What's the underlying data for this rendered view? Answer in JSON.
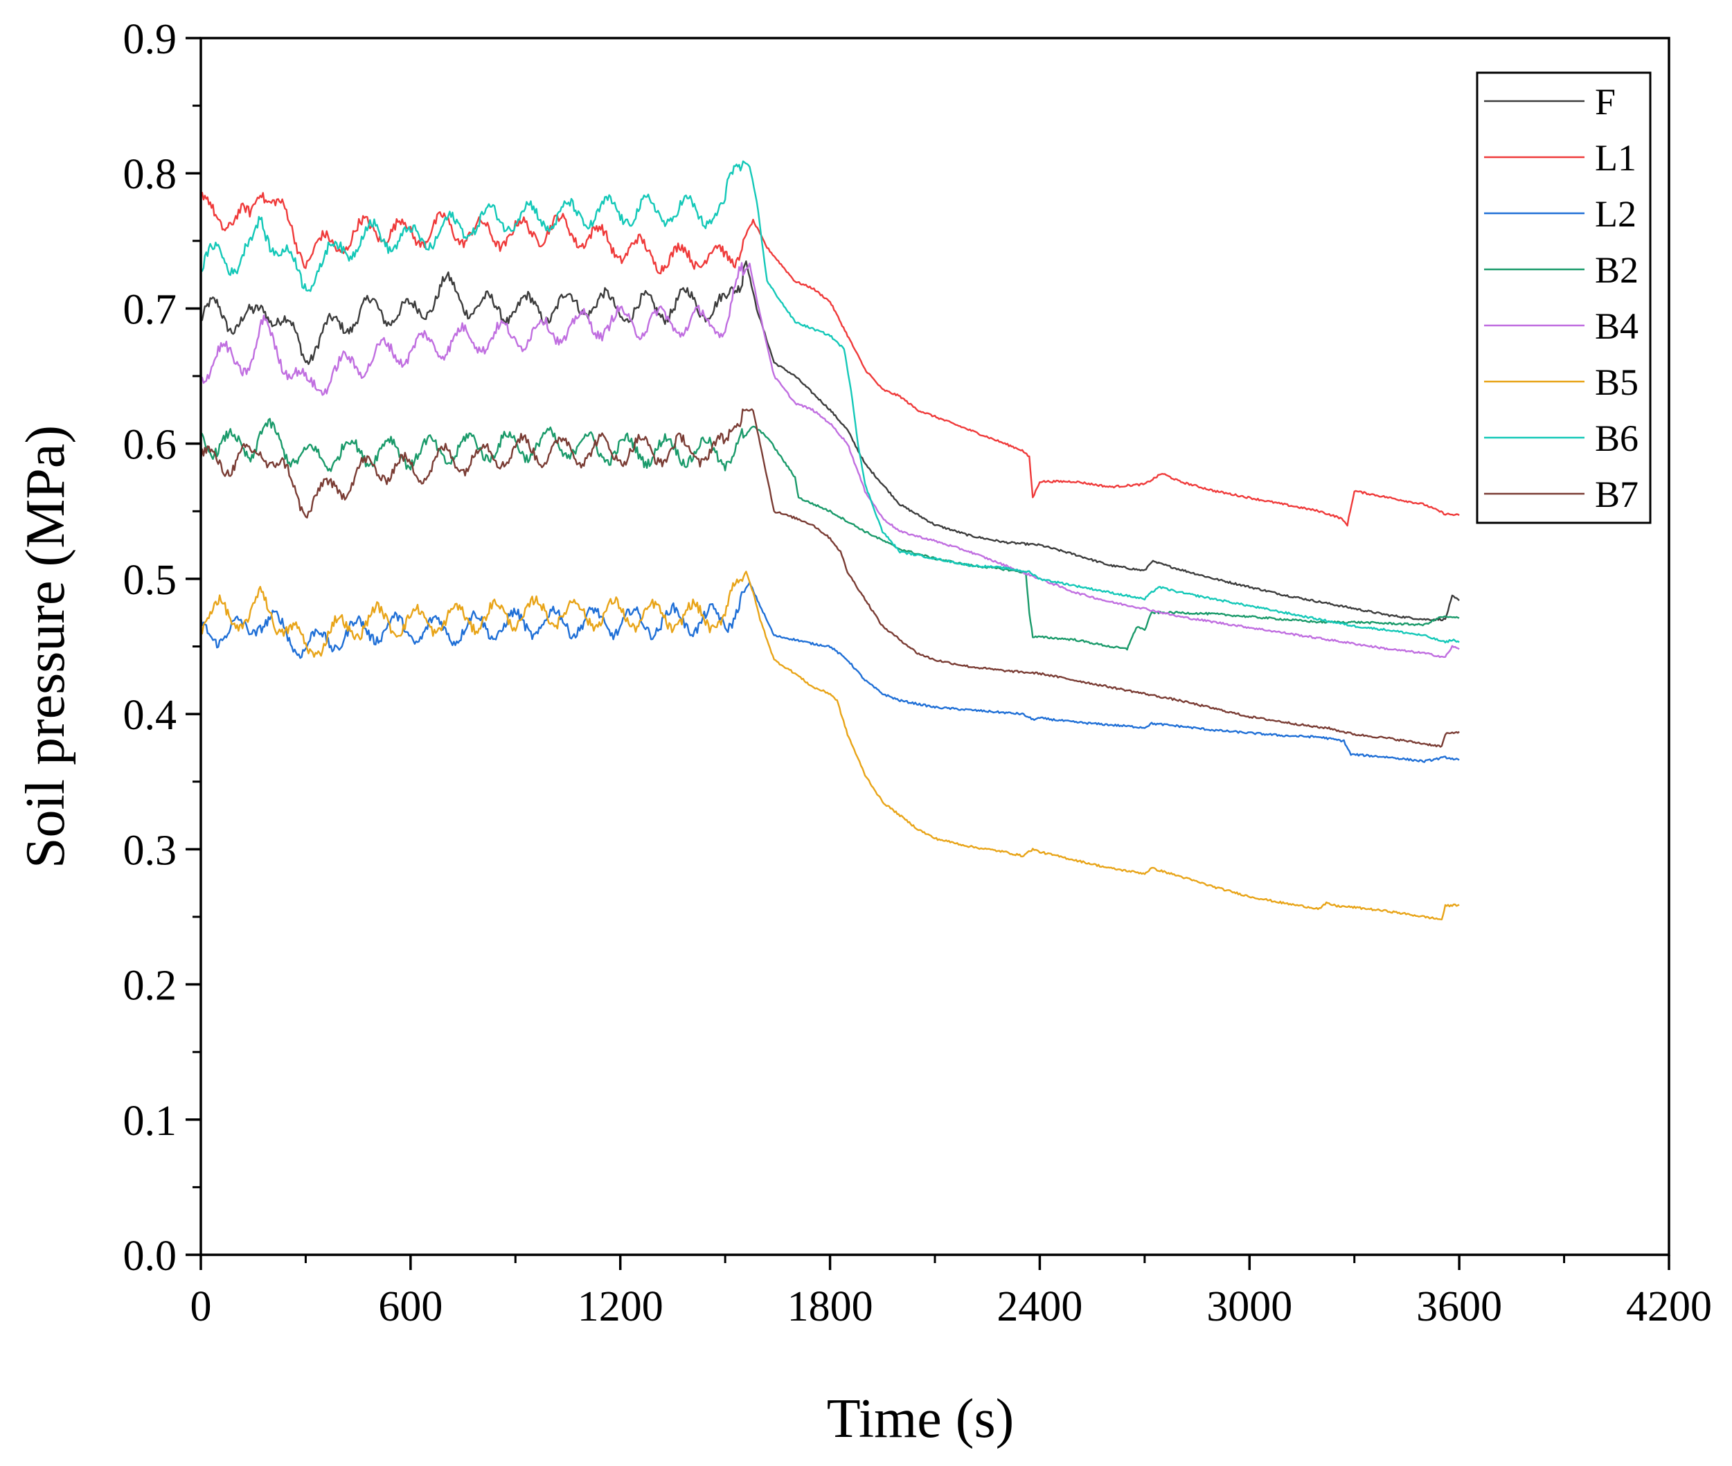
{
  "chart_data": {
    "type": "line",
    "title": "",
    "xlabel": "Time (s)",
    "ylabel": "Soil pressure (MPa)",
    "xlim": [
      0,
      4200
    ],
    "ylim": [
      0.0,
      0.9
    ],
    "x_major_ticks": [
      0,
      600,
      1200,
      1800,
      2400,
      3000,
      3600,
      4200
    ],
    "x_tick_labels": [
      "0",
      "600",
      "1200",
      "1800",
      "2400",
      "3000",
      "3600",
      "4200"
    ],
    "y_major_ticks": [
      0.0,
      0.1,
      0.2,
      0.3,
      0.4,
      0.5,
      0.6,
      0.7,
      0.8,
      0.9
    ],
    "y_tick_labels": [
      "0.0",
      "0.1",
      "0.2",
      "0.3",
      "0.4",
      "0.5",
      "0.6",
      "0.7",
      "0.8",
      "0.9"
    ],
    "x_minor_step": 300,
    "y_minor_step": 0.05,
    "grid": false,
    "legend_position": "top-right",
    "series": [
      {
        "name": "F",
        "color": "#3c3c3c",
        "x": [
          0,
          50,
          100,
          150,
          180,
          300,
          400,
          500,
          600,
          700,
          800,
          900,
          1000,
          1100,
          1200,
          1300,
          1400,
          1500,
          1530,
          1560,
          1590,
          1640,
          1700,
          1800,
          1850,
          1900,
          2000,
          2100,
          2200,
          2300,
          2400,
          2500,
          2600,
          2700,
          2720,
          2800,
          2900,
          3000,
          3100,
          3200,
          3300,
          3400,
          3500,
          3560,
          3580,
          3600
        ],
        "y": [
          0.69,
          0.7,
          0.69,
          0.69,
          0.705,
          0.668,
          0.69,
          0.7,
          0.695,
          0.715,
          0.7,
          0.7,
          0.7,
          0.705,
          0.7,
          0.7,
          0.705,
          0.7,
          0.715,
          0.735,
          0.7,
          0.66,
          0.65,
          0.625,
          0.61,
          0.585,
          0.555,
          0.54,
          0.532,
          0.527,
          0.525,
          0.518,
          0.51,
          0.506,
          0.513,
          0.507,
          0.5,
          0.494,
          0.488,
          0.483,
          0.478,
          0.473,
          0.47,
          0.47,
          0.487,
          0.484
        ]
      },
      {
        "name": "L1",
        "color": "#ef3a3a",
        "x": [
          0,
          50,
          100,
          140,
          170,
          300,
          400,
          500,
          600,
          700,
          800,
          900,
          1000,
          1100,
          1200,
          1300,
          1350,
          1400,
          1450,
          1500,
          1540,
          1580,
          1620,
          1700,
          1750,
          1800,
          1850,
          1900,
          1950,
          2000,
          2050,
          2100,
          2200,
          2300,
          2350,
          2370,
          2380,
          2400,
          2500,
          2600,
          2700,
          2750,
          2800,
          2900,
          3000,
          3100,
          3200,
          3260,
          3280,
          3300,
          3400,
          3500,
          3560,
          3600
        ],
        "y": [
          0.775,
          0.77,
          0.765,
          0.765,
          0.795,
          0.74,
          0.75,
          0.76,
          0.755,
          0.76,
          0.755,
          0.755,
          0.76,
          0.755,
          0.745,
          0.74,
          0.735,
          0.74,
          0.74,
          0.735,
          0.745,
          0.765,
          0.745,
          0.72,
          0.715,
          0.705,
          0.68,
          0.655,
          0.64,
          0.635,
          0.625,
          0.62,
          0.61,
          0.6,
          0.595,
          0.59,
          0.56,
          0.572,
          0.572,
          0.568,
          0.57,
          0.578,
          0.572,
          0.565,
          0.56,
          0.555,
          0.55,
          0.545,
          0.54,
          0.565,
          0.56,
          0.555,
          0.548,
          0.547
        ]
      },
      {
        "name": "L2",
        "color": "#1f6fd6",
        "x": [
          0,
          50,
          100,
          130,
          170,
          300,
          400,
          500,
          600,
          700,
          800,
          900,
          1000,
          1100,
          1200,
          1300,
          1400,
          1500,
          1540,
          1570,
          1600,
          1640,
          1700,
          1750,
          1800,
          1850,
          1900,
          1950,
          2000,
          2100,
          2200,
          2300,
          2350,
          2380,
          2400,
          2500,
          2600,
          2700,
          2720,
          2800,
          2900,
          3000,
          3100,
          3200,
          3270,
          3290,
          3300,
          3400,
          3500,
          3560,
          3600
        ],
        "y": [
          0.46,
          0.462,
          0.46,
          0.462,
          0.472,
          0.45,
          0.458,
          0.464,
          0.462,
          0.462,
          0.465,
          0.466,
          0.468,
          0.468,
          0.468,
          0.468,
          0.47,
          0.468,
          0.485,
          0.497,
          0.48,
          0.458,
          0.455,
          0.452,
          0.45,
          0.44,
          0.425,
          0.415,
          0.41,
          0.405,
          0.403,
          0.401,
          0.4,
          0.396,
          0.397,
          0.394,
          0.392,
          0.39,
          0.393,
          0.391,
          0.388,
          0.386,
          0.384,
          0.383,
          0.38,
          0.37,
          0.37,
          0.368,
          0.365,
          0.368,
          0.366
        ]
      },
      {
        "name": "B2",
        "color": "#1a9a6a",
        "x": [
          0,
          50,
          100,
          150,
          170,
          300,
          400,
          500,
          600,
          700,
          800,
          900,
          1000,
          1100,
          1200,
          1300,
          1400,
          1500,
          1540,
          1580,
          1620,
          1700,
          1710,
          1800,
          1900,
          2000,
          2100,
          2200,
          2300,
          2350,
          2360,
          2370,
          2380,
          2400,
          2500,
          2600,
          2650,
          2660,
          2680,
          2700,
          2720,
          2800,
          2900,
          3000,
          3100,
          3200,
          3300,
          3400,
          3500,
          3550,
          3600
        ],
        "y": [
          0.605,
          0.6,
          0.598,
          0.598,
          0.61,
          0.588,
          0.593,
          0.595,
          0.593,
          0.595,
          0.598,
          0.598,
          0.6,
          0.598,
          0.595,
          0.595,
          0.595,
          0.592,
          0.6,
          0.613,
          0.605,
          0.575,
          0.56,
          0.55,
          0.535,
          0.522,
          0.515,
          0.51,
          0.507,
          0.505,
          0.505,
          0.475,
          0.457,
          0.457,
          0.455,
          0.45,
          0.448,
          0.455,
          0.465,
          0.462,
          0.475,
          0.475,
          0.474,
          0.472,
          0.47,
          0.468,
          0.468,
          0.467,
          0.466,
          0.472,
          0.471
        ]
      },
      {
        "name": "B4",
        "color": "#c06ee0",
        "x": [
          0,
          50,
          100,
          150,
          180,
          300,
          400,
          500,
          600,
          700,
          800,
          900,
          1000,
          1100,
          1200,
          1300,
          1400,
          1500,
          1540,
          1570,
          1600,
          1640,
          1700,
          1750,
          1800,
          1850,
          1900,
          1950,
          2000,
          2100,
          2200,
          2300,
          2400,
          2500,
          2600,
          2700,
          2800,
          2900,
          3000,
          3100,
          3200,
          3300,
          3400,
          3500,
          3560,
          3580,
          3600
        ],
        "y": [
          0.655,
          0.665,
          0.66,
          0.665,
          0.685,
          0.64,
          0.655,
          0.665,
          0.67,
          0.675,
          0.678,
          0.68,
          0.683,
          0.688,
          0.69,
          0.69,
          0.69,
          0.688,
          0.72,
          0.733,
          0.695,
          0.65,
          0.63,
          0.625,
          0.615,
          0.6,
          0.565,
          0.545,
          0.535,
          0.528,
          0.52,
          0.51,
          0.5,
          0.49,
          0.483,
          0.478,
          0.472,
          0.468,
          0.464,
          0.46,
          0.456,
          0.452,
          0.448,
          0.445,
          0.442,
          0.45,
          0.448
        ]
      },
      {
        "name": "B5",
        "color": "#e8a418",
        "x": [
          0,
          50,
          100,
          150,
          170,
          300,
          400,
          500,
          600,
          700,
          800,
          900,
          1000,
          1100,
          1200,
          1300,
          1400,
          1500,
          1530,
          1560,
          1580,
          1600,
          1640,
          1700,
          1750,
          1800,
          1820,
          1850,
          1900,
          1950,
          2000,
          2050,
          2100,
          2200,
          2300,
          2350,
          2380,
          2400,
          2500,
          2600,
          2700,
          2720,
          2800,
          2900,
          3000,
          3100,
          3200,
          3220,
          3250,
          3300,
          3400,
          3500,
          3550,
          3560,
          3600
        ],
        "y": [
          0.47,
          0.475,
          0.472,
          0.472,
          0.485,
          0.448,
          0.463,
          0.47,
          0.468,
          0.47,
          0.472,
          0.474,
          0.476,
          0.474,
          0.474,
          0.472,
          0.472,
          0.472,
          0.49,
          0.505,
          0.49,
          0.47,
          0.44,
          0.43,
          0.42,
          0.415,
          0.41,
          0.385,
          0.355,
          0.335,
          0.325,
          0.315,
          0.308,
          0.302,
          0.298,
          0.295,
          0.3,
          0.298,
          0.292,
          0.286,
          0.282,
          0.286,
          0.28,
          0.272,
          0.265,
          0.26,
          0.256,
          0.26,
          0.258,
          0.257,
          0.254,
          0.25,
          0.248,
          0.258,
          0.259
        ]
      },
      {
        "name": "B6",
        "color": "#14c8b8",
        "x": [
          0,
          50,
          100,
          150,
          170,
          290,
          400,
          500,
          600,
          700,
          800,
          900,
          1000,
          1100,
          1200,
          1300,
          1400,
          1500,
          1510,
          1540,
          1570,
          1590,
          1620,
          1700,
          1750,
          1800,
          1840,
          1860,
          1880,
          1900,
          1950,
          2000,
          2100,
          2200,
          2300,
          2370,
          2400,
          2500,
          2600,
          2700,
          2720,
          2740,
          2800,
          2900,
          3000,
          3100,
          3200,
          3300,
          3400,
          3500,
          3560,
          3580,
          3600
        ],
        "y": [
          0.73,
          0.74,
          0.735,
          0.745,
          0.765,
          0.72,
          0.745,
          0.755,
          0.75,
          0.758,
          0.765,
          0.768,
          0.768,
          0.77,
          0.772,
          0.772,
          0.772,
          0.77,
          0.79,
          0.81,
          0.805,
          0.78,
          0.72,
          0.69,
          0.685,
          0.68,
          0.67,
          0.64,
          0.6,
          0.57,
          0.535,
          0.52,
          0.515,
          0.51,
          0.508,
          0.505,
          0.5,
          0.495,
          0.49,
          0.485,
          0.49,
          0.494,
          0.49,
          0.485,
          0.48,
          0.475,
          0.47,
          0.465,
          0.462,
          0.458,
          0.453,
          0.455,
          0.453
        ]
      },
      {
        "name": "B7",
        "color": "#7a3c34",
        "x": [
          0,
          50,
          100,
          150,
          170,
          300,
          400,
          500,
          600,
          700,
          800,
          900,
          1000,
          1100,
          1200,
          1300,
          1400,
          1500,
          1520,
          1550,
          1580,
          1600,
          1640,
          1700,
          1750,
          1800,
          1830,
          1850,
          1900,
          1950,
          2000,
          2050,
          2100,
          2200,
          2300,
          2400,
          2500,
          2600,
          2700,
          2800,
          2900,
          3000,
          3100,
          3200,
          3220,
          3250,
          3300,
          3400,
          3500,
          3550,
          3560,
          3600
        ],
        "y": [
          0.585,
          0.59,
          0.585,
          0.59,
          0.6,
          0.555,
          0.57,
          0.583,
          0.58,
          0.588,
          0.59,
          0.595,
          0.595,
          0.595,
          0.595,
          0.595,
          0.595,
          0.595,
          0.615,
          0.625,
          0.625,
          0.6,
          0.55,
          0.545,
          0.54,
          0.53,
          0.52,
          0.505,
          0.485,
          0.465,
          0.455,
          0.445,
          0.44,
          0.435,
          0.432,
          0.43,
          0.425,
          0.42,
          0.415,
          0.41,
          0.404,
          0.398,
          0.394,
          0.39,
          0.39,
          0.388,
          0.385,
          0.382,
          0.378,
          0.376,
          0.385,
          0.387
        ]
      }
    ]
  }
}
